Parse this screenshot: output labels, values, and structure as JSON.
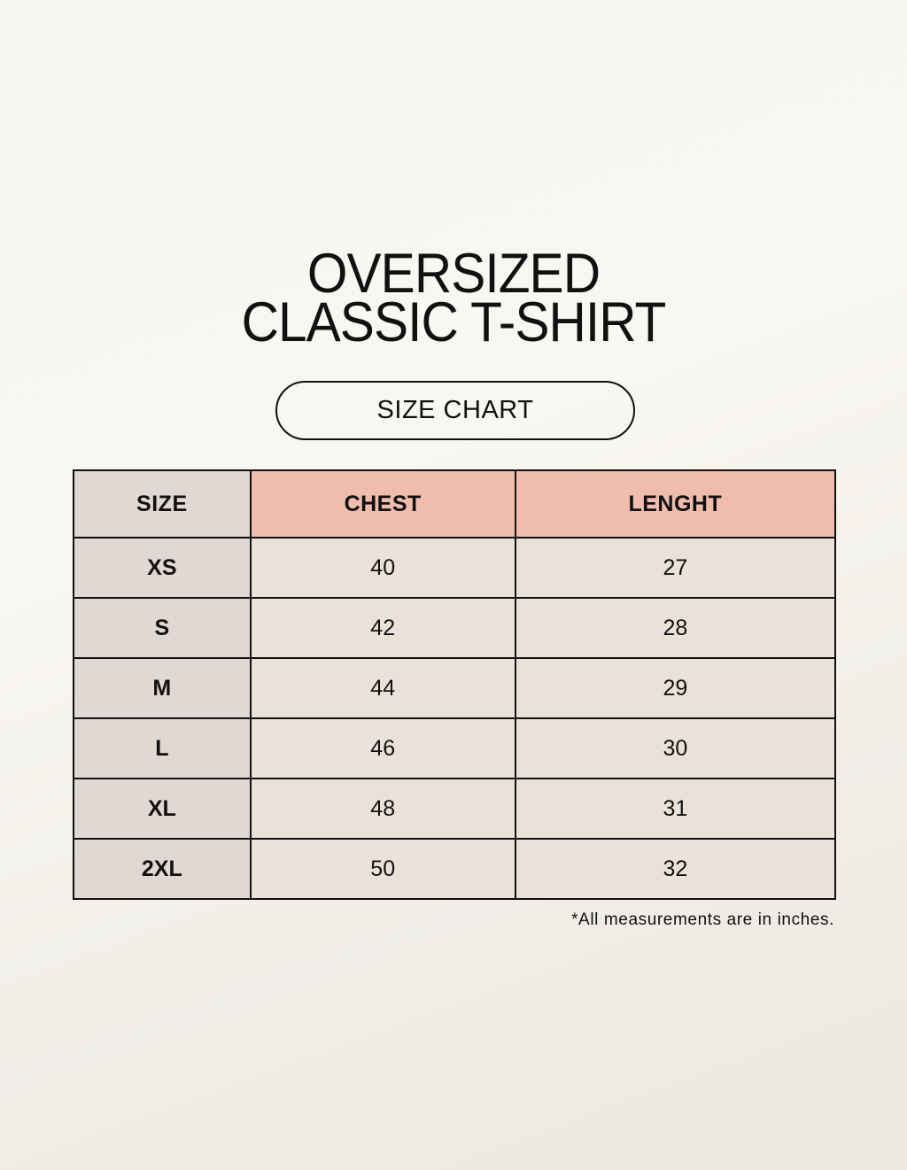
{
  "title": {
    "line1": "OVERSIZED",
    "line2": "CLASSIC T-SHIRT"
  },
  "subtitle": "SIZE CHART",
  "colors": {
    "header_accent": "#efbcae",
    "size_column": "#e0d8d3",
    "cells": "#eae2d8"
  },
  "table": {
    "headers": [
      "SIZE",
      "CHEST",
      "LENGHT"
    ],
    "rows": [
      [
        "XS",
        "40",
        "27"
      ],
      [
        "S",
        "42",
        "28"
      ],
      [
        "M",
        "44",
        "29"
      ],
      [
        "L",
        "46",
        "30"
      ],
      [
        "XL",
        "48",
        "31"
      ],
      [
        "2XL",
        "50",
        "32"
      ]
    ]
  },
  "footnote": "*All measurements are in inches."
}
